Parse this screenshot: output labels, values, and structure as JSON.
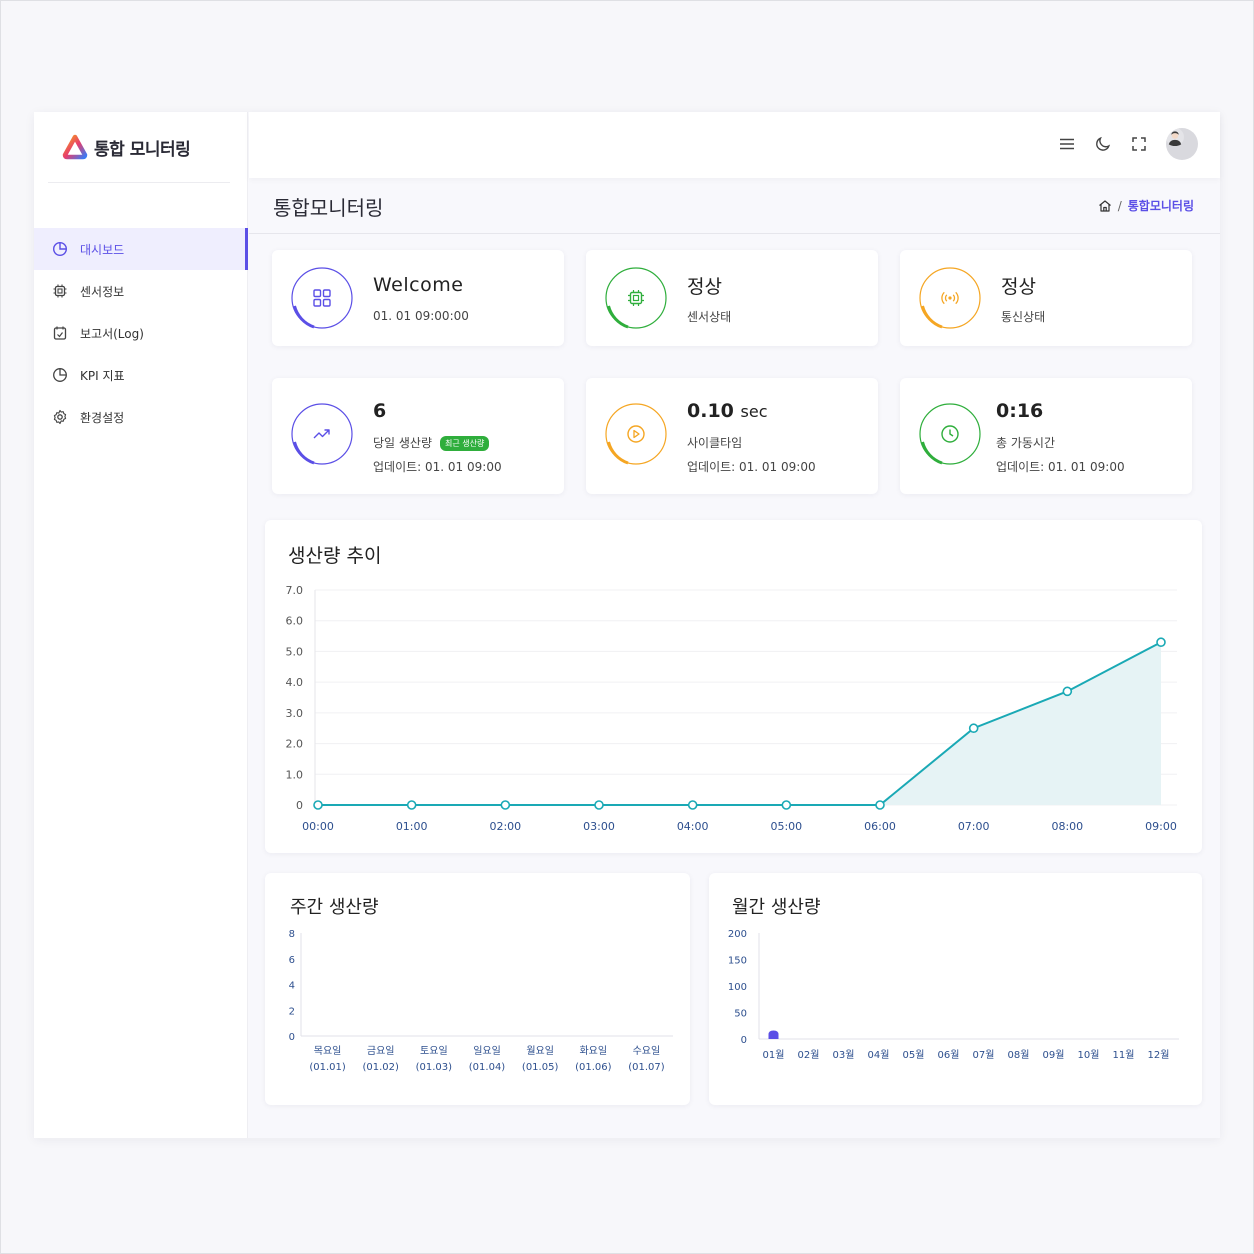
{
  "app": {
    "logo_text": "통합 모니터링",
    "colors": {
      "accent": "#5b4fe6",
      "green": "#2fae3c",
      "orange": "#f5a623",
      "teal": "#1aa9b5"
    }
  },
  "sidebar": {
    "items": [
      {
        "label": "대시보드",
        "icon": "pie-chart-icon",
        "active": true
      },
      {
        "label": "센서정보",
        "icon": "chip-icon",
        "active": false
      },
      {
        "label": "보고서(Log)",
        "icon": "report-icon",
        "active": false
      },
      {
        "label": "KPI 지표",
        "icon": "pie-chart-icon",
        "active": false
      },
      {
        "label": "환경설정",
        "icon": "gear-icon",
        "active": false
      }
    ]
  },
  "topbar": {
    "icons": [
      "menu-icon",
      "moon-icon",
      "fullscreen-icon",
      "avatar"
    ]
  },
  "page": {
    "title": "통합모니터링",
    "breadcrumb_current": "통합모니터링",
    "breadcrumb_separator": "/"
  },
  "cards": {
    "welcome": {
      "title": "Welcome",
      "sub": "01. 01 09:00:00",
      "icon": "grid-icon",
      "color": "#5b4fe6"
    },
    "sensor": {
      "title": "정상",
      "sub": "센서상태",
      "icon": "chip-icon",
      "color": "#2fae3c"
    },
    "comm": {
      "title": "정상",
      "sub": "통신상태",
      "icon": "signal-icon",
      "color": "#f5a623"
    },
    "production": {
      "value": "6",
      "label": "당일 생산량",
      "badge": "최근 생산량",
      "update": "업데이트: 01. 01 09:00",
      "icon": "trend-up-icon",
      "color": "#5b4fe6"
    },
    "cycle": {
      "value": "0.10",
      "unit": "sec",
      "label": "사이클타임",
      "update": "업데이트: 01. 01 09:00",
      "icon": "play-icon",
      "color": "#f5a623"
    },
    "uptime": {
      "value": "0:16",
      "label": "총 가동시간",
      "update": "업데이트: 01. 01 09:00",
      "icon": "clock-icon",
      "color": "#2fae3c"
    }
  },
  "chart_data": [
    {
      "type": "area",
      "title": "생산량 추이",
      "categories": [
        "00:00",
        "01:00",
        "02:00",
        "03:00",
        "04:00",
        "05:00",
        "06:00",
        "07:00",
        "08:00",
        "09:00"
      ],
      "values": [
        0,
        0,
        0,
        0,
        0,
        0,
        0,
        2.5,
        3.7,
        5.3
      ],
      "ylim": [
        0,
        7
      ],
      "yticks": [
        "0",
        "1.0",
        "2.0",
        "3.0",
        "4.0",
        "5.0",
        "6.0",
        "7.0"
      ],
      "color": "#1aa9b5"
    },
    {
      "type": "bar",
      "title": "주간 생산량",
      "categories": [
        "목요일",
        "금요일",
        "토요일",
        "일요일",
        "월요일",
        "화요일",
        "수요일"
      ],
      "category_sub": [
        "(01.01)",
        "(01.02)",
        "(01.03)",
        "(01.04)",
        "(01.05)",
        "(01.06)",
        "(01.07)"
      ],
      "values": [
        0,
        0,
        0,
        0,
        0,
        0,
        0
      ],
      "ylim": [
        0,
        8
      ],
      "yticks": [
        "0",
        "2",
        "4",
        "6",
        "8"
      ],
      "color": "#5b4fe6"
    },
    {
      "type": "bar",
      "title": "월간 생산량",
      "categories": [
        "01월",
        "02월",
        "03월",
        "04월",
        "05월",
        "06월",
        "07월",
        "08월",
        "09월",
        "10월",
        "11월",
        "12월"
      ],
      "values": [
        16,
        0,
        0,
        0,
        0,
        0,
        0,
        0,
        0,
        0,
        0,
        0
      ],
      "ylim": [
        0,
        200
      ],
      "yticks": [
        "0",
        "50",
        "100",
        "150",
        "200"
      ],
      "color": "#5b4fe6"
    }
  ]
}
